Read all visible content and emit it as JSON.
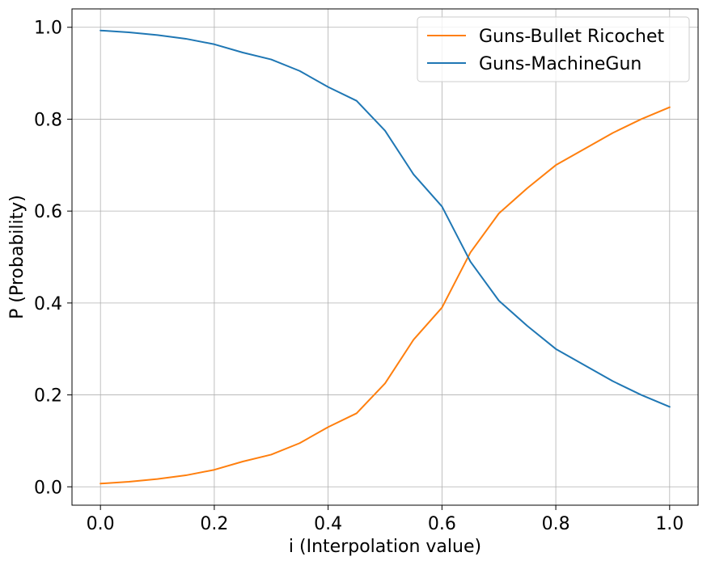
{
  "chart_data": {
    "type": "line",
    "xlabel": "i (Interpolation value)",
    "ylabel": "P (Probability)",
    "xlim": [
      -0.05,
      1.05
    ],
    "ylim": [
      -0.04,
      1.04
    ],
    "xticks": [
      0.0,
      0.2,
      0.4,
      0.6,
      0.8,
      1.0
    ],
    "xtick_labels": [
      "0.0",
      "0.2",
      "0.4",
      "0.6",
      "0.8",
      "1.0"
    ],
    "yticks": [
      0.0,
      0.2,
      0.4,
      0.6,
      0.8,
      1.0
    ],
    "ytick_labels": [
      "0.0",
      "0.2",
      "0.4",
      "0.6",
      "0.8",
      "1.0"
    ],
    "grid": true,
    "legend_position": "top-right",
    "x": [
      0.0,
      0.05,
      0.1,
      0.15,
      0.2,
      0.25,
      0.3,
      0.35,
      0.4,
      0.45,
      0.5,
      0.55,
      0.6,
      0.65,
      0.7,
      0.75,
      0.8,
      0.85,
      0.9,
      0.95,
      1.0
    ],
    "series": [
      {
        "name": "Guns-Bullet Ricochet",
        "color": "#ff7f0e",
        "values": [
          0.007,
          0.011,
          0.017,
          0.025,
          0.037,
          0.055,
          0.07,
          0.095,
          0.13,
          0.16,
          0.225,
          0.32,
          0.39,
          0.51,
          0.595,
          0.65,
          0.7,
          0.735,
          0.77,
          0.8,
          0.826
        ]
      },
      {
        "name": "Guns-MachineGun",
        "color": "#1f77b4",
        "values": [
          0.993,
          0.989,
          0.983,
          0.975,
          0.963,
          0.945,
          0.93,
          0.905,
          0.87,
          0.84,
          0.775,
          0.68,
          0.61,
          0.49,
          0.405,
          0.35,
          0.3,
          0.265,
          0.23,
          0.2,
          0.174
        ]
      }
    ]
  }
}
